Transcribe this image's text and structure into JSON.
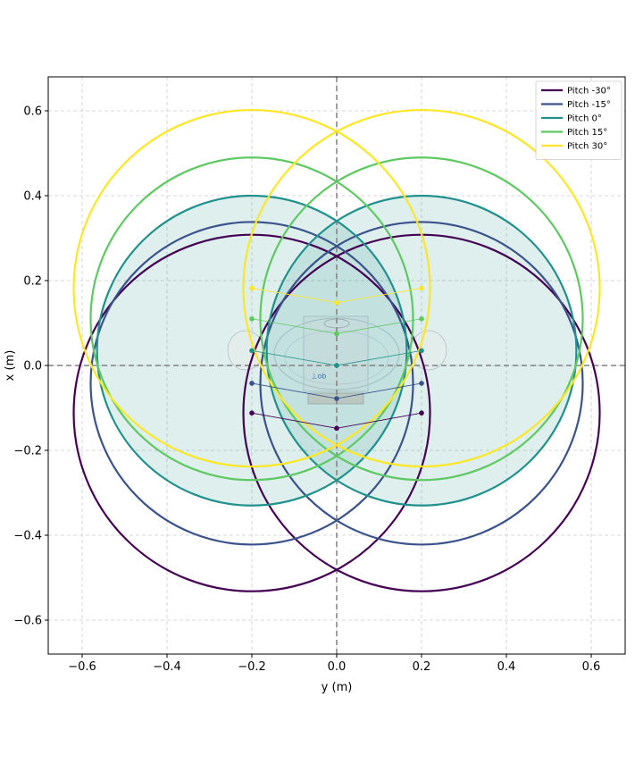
{
  "chart_data": {
    "type": "line",
    "title": "",
    "xlabel": "y (m)",
    "ylabel": "x (m)",
    "xlim": [
      -0.68,
      0.68
    ],
    "ylim": [
      -0.68,
      0.68
    ],
    "xticks": [
      -0.6,
      -0.4,
      -0.2,
      0.0,
      0.2,
      0.4,
      0.6
    ],
    "yticks": [
      -0.6,
      -0.4,
      -0.2,
      0.0,
      0.2,
      0.4,
      0.6
    ],
    "grid": true,
    "legend_position": "top-right",
    "reference_lines": [
      {
        "axis": "x",
        "value": 0
      },
      {
        "axis": "y",
        "value": 0
      }
    ],
    "filled_region": {
      "color": "#21918c",
      "note_series": "Pitch 0°"
    },
    "series": [
      {
        "name": "Pitch -30°",
        "color": "#440154",
        "circles": [
          {
            "cy": -0.2,
            "cx": -0.112,
            "r": 0.42
          },
          {
            "cy": 0.2,
            "cx": -0.112,
            "r": 0.42
          }
        ],
        "markers": [
          {
            "y": -0.2,
            "x": -0.112
          },
          {
            "y": 0.2,
            "x": -0.112
          },
          {
            "y": 0.0,
            "x": -0.148
          }
        ]
      },
      {
        "name": "Pitch -15°",
        "color": "#3b528b",
        "circles": [
          {
            "cy": -0.2,
            "cx": -0.042,
            "r": 0.38
          },
          {
            "cy": 0.2,
            "cx": -0.042,
            "r": 0.38
          }
        ],
        "markers": [
          {
            "y": -0.2,
            "x": -0.042
          },
          {
            "y": 0.2,
            "x": -0.042
          },
          {
            "y": 0.0,
            "x": -0.078
          }
        ]
      },
      {
        "name": "Pitch 0°",
        "color": "#21918c",
        "circles": [
          {
            "cy": -0.2,
            "cx": 0.035,
            "r": 0.365
          },
          {
            "cy": 0.2,
            "cx": 0.035,
            "r": 0.365
          }
        ],
        "markers": [
          {
            "y": -0.2,
            "x": 0.035
          },
          {
            "y": 0.2,
            "x": 0.035
          },
          {
            "y": 0.0,
            "x": 0.0
          }
        ]
      },
      {
        "name": "Pitch 15°",
        "color": "#5ec962",
        "circles": [
          {
            "cy": -0.2,
            "cx": 0.11,
            "r": 0.38
          },
          {
            "cy": 0.2,
            "cx": 0.11,
            "r": 0.38
          }
        ],
        "markers": [
          {
            "y": -0.2,
            "x": 0.11
          },
          {
            "y": 0.2,
            "x": 0.11
          },
          {
            "y": 0.0,
            "x": 0.075
          }
        ]
      },
      {
        "name": "Pitch 30°",
        "color": "#fde725",
        "circles": [
          {
            "cy": -0.2,
            "cx": 0.182,
            "r": 0.42
          },
          {
            "cy": 0.2,
            "cx": 0.182,
            "r": 0.42
          }
        ],
        "markers": [
          {
            "y": -0.2,
            "x": 0.182
          },
          {
            "y": 0.2,
            "x": 0.182
          },
          {
            "y": 0.0,
            "x": 0.148
          }
        ]
      }
    ],
    "annotations": [
      {
        "text": "⊥ob",
        "y": -0.06,
        "x": -0.03
      }
    ]
  }
}
